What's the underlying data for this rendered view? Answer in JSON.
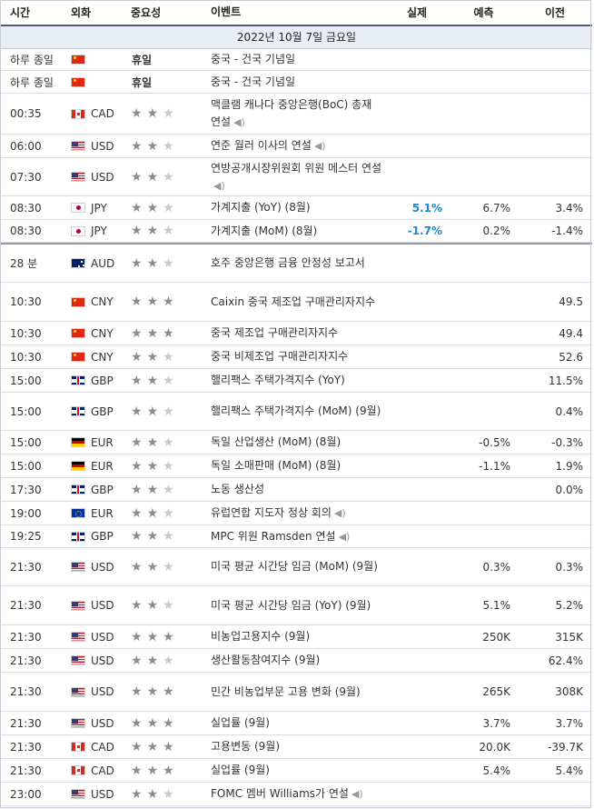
{
  "header": {
    "time": "시간",
    "currency": "외화",
    "importance": "중요성",
    "event": "이벤트",
    "actual": "실제",
    "forecast": "예측",
    "previous": "이전"
  },
  "date": "2022년 10월 7일 금요일",
  "holiday_label": "휴일",
  "rows": [
    {
      "time": "하루 종일",
      "flag": "cn",
      "cur": "",
      "imp": "holiday",
      "event": "중국 - 건국 기념일",
      "actual": "",
      "forecast": "",
      "previous": "",
      "h": 24
    },
    {
      "time": "하루 종일",
      "flag": "cn",
      "cur": "",
      "imp": "holiday",
      "event": "중국 - 건국 기념일",
      "actual": "",
      "forecast": "",
      "previous": "",
      "h": 25
    },
    {
      "time": "00:35",
      "flag": "ca",
      "cur": "CAD",
      "imp": 2,
      "event": "맥클램 캐나다 중앙은행(BoC) 총재 연설",
      "speech": true,
      "actual": "",
      "forecast": "",
      "previous": "",
      "h": 45
    },
    {
      "time": "06:00",
      "flag": "us",
      "cur": "USD",
      "imp": 2,
      "event": "연준 월러 이사의 연설",
      "speech": true,
      "actual": "",
      "forecast": "",
      "previous": "",
      "h": 26
    },
    {
      "time": "07:30",
      "flag": "us",
      "cur": "USD",
      "imp": 2,
      "event": "연방공개시장위원회 위원 메스터 연설",
      "speech": true,
      "actual": "",
      "forecast": "",
      "previous": "",
      "h": 42
    },
    {
      "time": "08:30",
      "flag": "jp",
      "cur": "JPY",
      "imp": 2,
      "event": "가계지출 (YoY) (8월)",
      "actual": "5.1%",
      "actual_blue": true,
      "forecast": "6.7%",
      "previous": "3.4%",
      "h": 26
    },
    {
      "time": "08:30",
      "flag": "jp",
      "cur": "JPY",
      "imp": 2,
      "event": "가계지출 (MoM) (8월)",
      "actual": "-1.7%",
      "actual_blue": true,
      "forecast": "0.2%",
      "previous": "-1.4%",
      "h": 25
    },
    {
      "time": "28 분",
      "flag": "au",
      "cur": "AUD",
      "imp": 2,
      "event": "호주 중앙은행 금융 안정성 보고서",
      "actual": "",
      "forecast": "",
      "previous": "",
      "h": 44,
      "sep": true
    },
    {
      "time": "10:30",
      "flag": "cn",
      "cur": "CNY",
      "imp": 3,
      "event": "Caixin 중국 제조업 구매관리자지수",
      "actual": "",
      "forecast": "",
      "previous": "49.5",
      "h": 43
    },
    {
      "time": "10:30",
      "flag": "cn",
      "cur": "CNY",
      "imp": 3,
      "event": "중국 제조업 구매관리자지수",
      "actual": "",
      "forecast": "",
      "previous": "49.4",
      "h": 26
    },
    {
      "time": "10:30",
      "flag": "cn",
      "cur": "CNY",
      "imp": 2,
      "event": "중국 비제조업 구매관리자지수",
      "actual": "",
      "forecast": "",
      "previous": "52.6",
      "h": 26
    },
    {
      "time": "15:00",
      "flag": "gb",
      "cur": "GBP",
      "imp": 2,
      "event": "핼리팩스 주택가격지수 (YoY)",
      "actual": "",
      "forecast": "",
      "previous": "11.5%",
      "h": 26
    },
    {
      "time": "15:00",
      "flag": "gb",
      "cur": "GBP",
      "imp": 2,
      "event": "핼리팩스 주택가격지수 (MoM) (9월)",
      "actual": "",
      "forecast": "",
      "previous": "0.4%",
      "h": 42
    },
    {
      "time": "15:00",
      "flag": "de",
      "cur": "EUR",
      "imp": 2,
      "event": "독일 산업생산 (MoM) (8월)",
      "actual": "",
      "forecast": "-0.5%",
      "previous": "-0.3%",
      "h": 26
    },
    {
      "time": "15:00",
      "flag": "de",
      "cur": "EUR",
      "imp": 2,
      "event": "독일 소매판매 (MoM) (8월)",
      "actual": "",
      "forecast": "-1.1%",
      "previous": "1.9%",
      "h": 26
    },
    {
      "time": "17:30",
      "flag": "gb",
      "cur": "GBP",
      "imp": 2,
      "event": "노동 생산성",
      "actual": "",
      "forecast": "",
      "previous": "0.0%",
      "h": 26
    },
    {
      "time": "19:00",
      "flag": "eu",
      "cur": "EUR",
      "imp": 2,
      "event": "유럽연합 지도자 정상 회의",
      "speech": true,
      "actual": "",
      "forecast": "",
      "previous": "",
      "h": 26
    },
    {
      "time": "19:25",
      "flag": "gb",
      "cur": "GBP",
      "imp": 2,
      "event": "MPC 위원 Ramsden 연설",
      "speech": true,
      "actual": "",
      "forecast": "",
      "previous": "",
      "h": 25
    },
    {
      "time": "21:30",
      "flag": "us",
      "cur": "USD",
      "imp": 2,
      "event": "미국 평균 시간당 임금 (MoM) (9월)",
      "actual": "",
      "forecast": "0.3%",
      "previous": "0.3%",
      "h": 42
    },
    {
      "time": "21:30",
      "flag": "us",
      "cur": "USD",
      "imp": 2,
      "event": "미국 평균 시간당 임금 (YoY) (9월)",
      "actual": "",
      "forecast": "5.1%",
      "previous": "5.2%",
      "h": 43
    },
    {
      "time": "21:30",
      "flag": "us",
      "cur": "USD",
      "imp": 3,
      "event": "비농업고용지수 (9월)",
      "actual": "",
      "forecast": "250K",
      "previous": "315K",
      "h": 26
    },
    {
      "time": "21:30",
      "flag": "us",
      "cur": "USD",
      "imp": 2,
      "event": "생산활동참여지수 (9월)",
      "actual": "",
      "forecast": "",
      "previous": "62.4%",
      "h": 26
    },
    {
      "time": "21:30",
      "flag": "us",
      "cur": "USD",
      "imp": 3,
      "event": "민간 비농업부문 고용 변화 (9월)",
      "actual": "",
      "forecast": "265K",
      "previous": "308K",
      "h": 43
    },
    {
      "time": "21:30",
      "flag": "us",
      "cur": "USD",
      "imp": 3,
      "event": "실업률 (9월)",
      "actual": "",
      "forecast": "3.7%",
      "previous": "3.7%",
      "h": 26
    },
    {
      "time": "21:30",
      "flag": "ca",
      "cur": "CAD",
      "imp": 3,
      "event": "고용변동 (9월)",
      "actual": "",
      "forecast": "20.0K",
      "previous": "-39.7K",
      "h": 26
    },
    {
      "time": "21:30",
      "flag": "ca",
      "cur": "CAD",
      "imp": 3,
      "event": "실업률 (9월)",
      "actual": "",
      "forecast": "5.4%",
      "previous": "5.4%",
      "h": 26
    },
    {
      "time": "23:00",
      "flag": "us",
      "cur": "USD",
      "imp": 2,
      "event": "FOMC 멤버 Williams가 연설",
      "speech": true,
      "actual": "",
      "forecast": "",
      "previous": "",
      "h": 26
    }
  ]
}
